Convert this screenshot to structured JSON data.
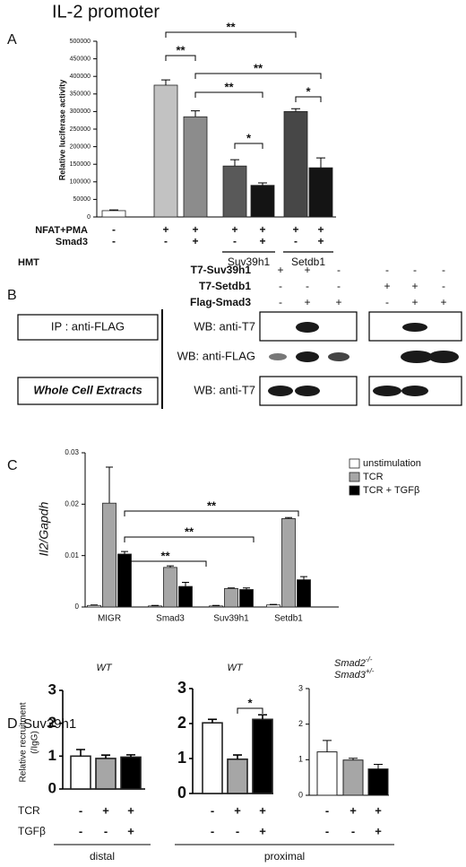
{
  "panel_labels": [
    "A",
    "B",
    "C",
    "D"
  ],
  "chart_data": [
    {
      "type": "bar",
      "title": "IL-2 promoter",
      "y_label": "Relative luciferase activity",
      "values": [
        18000,
        375000,
        285000,
        145000,
        90000,
        300000,
        140000
      ],
      "errors": [
        2000,
        15000,
        17000,
        18000,
        7000,
        8000,
        28000
      ],
      "colors": [
        "#ffffff",
        "#c2c2c2",
        "#8c8c8c",
        "#595959",
        "#141414",
        "#474747",
        "#141414"
      ],
      "ylim": [
        0,
        500000
      ],
      "yticks": [
        0,
        50000,
        100000,
        150000,
        200000,
        250000,
        300000,
        350000,
        400000,
        450000,
        500000
      ],
      "significance": [
        "**",
        "**",
        "**",
        "**",
        "*",
        "*"
      ],
      "conditions": [
        {
          "label": "NFAT+PMA",
          "signs": [
            "-",
            "+",
            "+",
            "+",
            "+",
            "+",
            "+"
          ]
        },
        {
          "label": "Smad3",
          "signs": [
            "-",
            "-",
            "+",
            "-",
            "+",
            "-",
            "+"
          ]
        }
      ],
      "hmt": {
        "label": "HMT",
        "groups": [
          "Suv39h1",
          "Setdb1"
        ]
      }
    },
    {
      "type": "bar",
      "y_label": "Il2/Gapdh",
      "categories": [
        "MIGR",
        "Smad3",
        "Suv39h1",
        "Setdb1"
      ],
      "series": [
        {
          "name": "unstimulation",
          "color": "#ffffff",
          "values": [
            0.0003,
            0.0002,
            0.0002,
            0.0004
          ],
          "errors": [
            0.0001,
            0.0001,
            0.0001,
            0.0001
          ]
        },
        {
          "name": "TCR",
          "color": "#a6a6a6",
          "values": [
            0.0202,
            0.0077,
            0.0036,
            0.0172
          ],
          "errors": [
            0.007,
            0.0003,
            0.0001,
            0.0002
          ]
        },
        {
          "name": "TCR + TGFβ",
          "color": "#000000",
          "values": [
            0.0103,
            0.004,
            0.0034,
            0.0053
          ],
          "errors": [
            0.0005,
            0.0008,
            0.0003,
            0.0006
          ]
        }
      ],
      "ylim": [
        0,
        0.03
      ],
      "yticks": [
        0,
        0.01,
        0.02,
        0.03
      ],
      "significance": [
        "**",
        "**",
        "**"
      ]
    },
    {
      "type": "bar",
      "subtitle": [
        "WT"
      ],
      "values": [
        1.0,
        0.93,
        0.97
      ],
      "errors": [
        0.2,
        0.1,
        0.07
      ],
      "colors": [
        "#ffffff",
        "#a6a6a6",
        "#000000"
      ],
      "ylim": [
        0,
        3
      ],
      "yticks": [
        0,
        1,
        2,
        3
      ]
    },
    {
      "type": "bar",
      "subtitle": [
        "WT"
      ],
      "values": [
        2.02,
        0.98,
        2.12
      ],
      "errors": [
        0.1,
        0.12,
        0.13
      ],
      "colors": [
        "#ffffff",
        "#a6a6a6",
        "#000000"
      ],
      "ylim": [
        0,
        3
      ],
      "yticks": [
        0,
        1,
        2,
        3
      ],
      "significance": [
        "*"
      ]
    },
    {
      "type": "bar",
      "subtitle": [
        "Smad2",
        "-/-",
        "Smad3",
        "+/-"
      ],
      "values": [
        1.22,
        0.99,
        0.74
      ],
      "errors": [
        0.32,
        0.05,
        0.13
      ],
      "colors": [
        "#ffffff",
        "#a6a6a6",
        "#000000"
      ],
      "ylim": [
        0,
        3
      ],
      "yticks": [
        0,
        1,
        2,
        3
      ]
    }
  ],
  "blot": {
    "constructs": [
      {
        "label": "T7-Suv39h1",
        "signs": [
          "+",
          "+",
          "-",
          "-",
          "-",
          "-"
        ]
      },
      {
        "label": "T7-Setdb1",
        "signs": [
          "-",
          "-",
          "-",
          "+",
          "+",
          "-"
        ]
      },
      {
        "label": "Flag-Smad3",
        "signs": [
          "-",
          "+",
          "+",
          "-",
          "+",
          "+"
        ]
      }
    ],
    "ip": "IP : anti-FLAG",
    "wce": "Whole Cell Extracts",
    "wb": [
      "WB: anti-T7",
      "WB: anti-FLAG",
      "WB: anti-T7"
    ]
  },
  "panel_d": {
    "title": "Suv39h1",
    "y_label": [
      "Relative recruitment",
      "(/IgG)"
    ],
    "conditions": [
      {
        "label": "TCR",
        "signs": [
          "-",
          "+",
          "+",
          "-",
          "+",
          "+",
          "-",
          "+",
          "+"
        ]
      },
      {
        "label": "TGFβ",
        "signs": [
          "-",
          "-",
          "+",
          "-",
          "-",
          "+",
          "-",
          "-",
          "+"
        ]
      }
    ],
    "groups": [
      "distal",
      "proximal"
    ]
  }
}
